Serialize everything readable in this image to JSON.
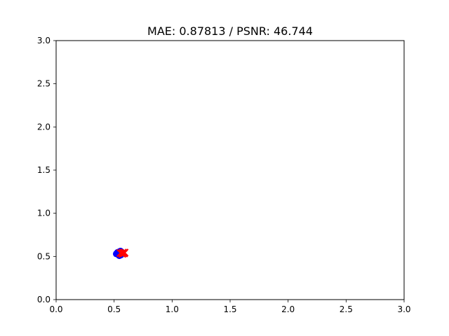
{
  "chart_data": {
    "type": "scatter",
    "title": "MAE: 0.87813 / PSNR: 46.744",
    "xlabel": "",
    "ylabel": "",
    "xlim": [
      0,
      3
    ],
    "ylim": [
      0,
      3
    ],
    "xticks": [
      "0.0",
      "0.5",
      "1.0",
      "1.5",
      "2.0",
      "2.5",
      "3.0"
    ],
    "yticks": [
      "0.0",
      "0.5",
      "1.0",
      "1.5",
      "2.0",
      "2.5",
      "3.0"
    ],
    "grid": false,
    "series": [
      {
        "marker": "circle",
        "color": "#0000ff",
        "points": [
          [
            0.52,
            0.53
          ],
          [
            0.54,
            0.55
          ],
          [
            0.555,
            0.56
          ],
          [
            0.56,
            0.52
          ],
          [
            0.545,
            0.51
          ],
          [
            0.53,
            0.545
          ],
          [
            0.565,
            0.545
          ],
          [
            0.55,
            0.535
          ]
        ]
      },
      {
        "marker": "x",
        "color": "#ff0000",
        "points": [
          [
            0.555,
            0.54
          ],
          [
            0.575,
            0.545
          ],
          [
            0.59,
            0.545
          ],
          [
            0.57,
            0.53
          ],
          [
            0.585,
            0.535
          ]
        ]
      }
    ]
  }
}
